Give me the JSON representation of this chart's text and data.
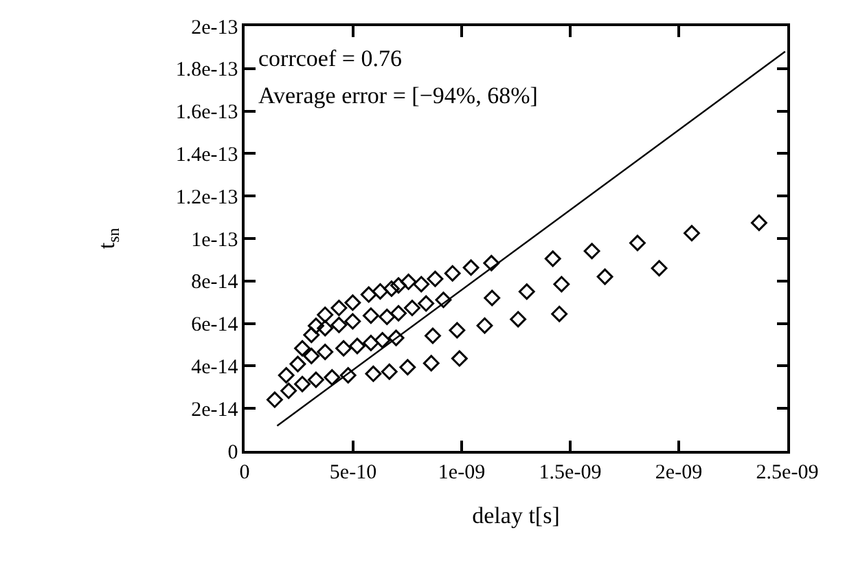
{
  "chart_data": {
    "type": "scatter",
    "xlabel": "delay t[s]",
    "ylabel": "t$_{sn}$",
    "annotations": [
      "corrcoef = 0.76",
      "Average error = [−94%, 68%]"
    ],
    "marker": "diamond",
    "xlim": [
      0,
      2.5e-09
    ],
    "ylim": [
      0,
      2e-13
    ],
    "xticks": [
      0,
      {
        "value": 5e-10,
        "label": "5e-10"
      },
      {
        "value": 1e-09,
        "label": "1e-09"
      },
      {
        "value": 1.5e-09,
        "label": "1.5e-09"
      },
      {
        "value": 2e-09,
        "label": "2e-09"
      },
      {
        "value": 2.5e-09,
        "label": "2.5e-09"
      }
    ],
    "yticks": [
      0,
      {
        "value": 2e-14,
        "label": "2e-14"
      },
      {
        "value": 4e-14,
        "label": "4e-14"
      },
      {
        "value": 6e-14,
        "label": "6e-14"
      },
      {
        "value": 8e-14,
        "label": "8e-14"
      },
      {
        "value": 1e-13,
        "label": "1e-13"
      },
      {
        "value": 1.2e-13,
        "label": "1.2e-13"
      },
      {
        "value": 1.4e-13,
        "label": "1.4e-13"
      },
      {
        "value": 1.6e-13,
        "label": "1.6e-13"
      },
      {
        "value": 1.8e-13,
        "label": "1.8e-13"
      },
      {
        "value": 2e-13,
        "label": "2e-13"
      }
    ],
    "series": [
      {
        "color": "#000000",
        "x": [
          1.39e-10,
          2.03e-10,
          2.66e-10,
          3.29e-10,
          4.03e-10,
          4.77e-10,
          5.93e-10,
          6.67e-10,
          7.51e-10,
          8.6e-10,
          9.9e-10,
          1.92e-10,
          2.45e-10,
          3.08e-10,
          3.71e-10,
          4.56e-10,
          5.19e-10,
          5.82e-10,
          6.35e-10,
          6.98e-10,
          8.67e-10,
          9.79e-10,
          1.106e-09,
          1.26e-09,
          1.45e-09,
          2.66e-10,
          3.08e-10,
          3.71e-10,
          4.35e-10,
          4.98e-10,
          5.82e-10,
          6.56e-10,
          7.09e-10,
          7.72e-10,
          8.36e-10,
          9.16e-10,
          1.14e-09,
          1.3e-09,
          1.46e-09,
          1.66e-09,
          1.91e-09,
          3.29e-10,
          3.71e-10,
          4.35e-10,
          4.98e-10,
          5.72e-10,
          6.25e-10,
          6.77e-10,
          7.09e-10,
          7.55e-10,
          8.14e-10,
          8.78e-10,
          9.58e-10,
          1.043e-09,
          1.137e-09,
          1.42e-09,
          1.6e-09,
          1.81e-09,
          2.06e-09,
          2.37e-09
        ],
        "values": [
          2.41e-14,
          2.83e-14,
          3.15e-14,
          3.35e-14,
          3.46e-14,
          3.56e-14,
          3.63e-14,
          3.73e-14,
          3.94e-14,
          4.13e-14,
          4.35e-14,
          3.56e-14,
          4.09e-14,
          4.47e-14,
          4.66e-14,
          4.83e-14,
          4.94e-14,
          5.08e-14,
          5.21e-14,
          5.32e-14,
          5.42e-14,
          5.68e-14,
          5.9e-14,
          6.2e-14,
          6.45e-14,
          4.83e-14,
          5.46e-14,
          5.78e-14,
          5.93e-14,
          6.1e-14,
          6.37e-14,
          6.31e-14,
          6.48e-14,
          6.73e-14,
          6.94e-14,
          7.11e-14,
          7.2e-14,
          7.5e-14,
          7.85e-14,
          8.2e-14,
          8.6e-14,
          5.89e-14,
          6.41e-14,
          6.73e-14,
          6.98e-14,
          7.36e-14,
          7.51e-14,
          7.64e-14,
          7.79e-14,
          7.96e-14,
          7.85e-14,
          8.1e-14,
          8.36e-14,
          8.63e-14,
          8.84e-14,
          9.05e-14,
          9.41e-14,
          9.79e-14,
          1.025e-13,
          1.074e-13
        ]
      },
      {
        "color": "#000000",
        "type": "line",
        "marker": "none",
        "x": [
          1.5e-10,
          2.49e-09
        ],
        "values": [
          1.18e-14,
          1.88e-13
        ]
      }
    ]
  }
}
